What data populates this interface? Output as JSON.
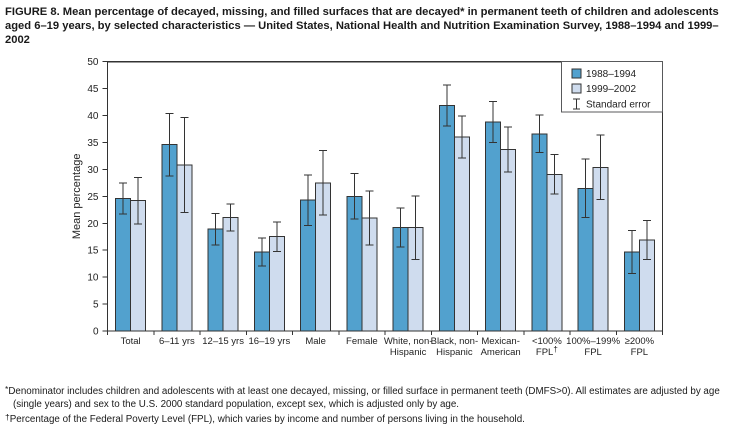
{
  "figure": {
    "title": "FIGURE 8. Mean percentage of decayed, missing, and filled surfaces that are decayed* in permanent teeth of children and adolescents aged 6–19 years, by selected characteristics — United States, National Health and Nutrition Examination Survey, 1988–1994 and 1999–2002"
  },
  "chart_data": {
    "type": "bar",
    "title": "",
    "xlabel": "",
    "ylabel": "Mean percentage",
    "ylim": [
      0,
      50
    ],
    "ytick_step": 5,
    "grid": false,
    "legend_position": "top-right-inside",
    "legend_error_label": "Standard error",
    "frame_color": "#333333",
    "categories": [
      [
        "Total"
      ],
      [
        "6–11 yrs"
      ],
      [
        "12–15 yrs"
      ],
      [
        "16–19 yrs"
      ],
      [
        "Male"
      ],
      [
        "Female"
      ],
      [
        "White, non-",
        "Hispanic"
      ],
      [
        "Black, non-",
        "Hispanic"
      ],
      [
        "Mexican-",
        "American"
      ],
      [
        "<100%",
        "FPL†"
      ],
      [
        "100%–199%",
        "FPL"
      ],
      [
        "≥200%",
        "FPL"
      ]
    ],
    "series": [
      {
        "name": "1988–1994",
        "color": "#52a1ce",
        "values": [
          24.6,
          34.6,
          18.9,
          14.7,
          24.3,
          25.0,
          19.2,
          41.9,
          38.8,
          36.6,
          26.5,
          14.7
        ],
        "errors": [
          2.9,
          5.8,
          2.9,
          2.6,
          4.7,
          4.2,
          3.6,
          3.8,
          3.8,
          3.5,
          5.4,
          4.0
        ]
      },
      {
        "name": "1999–2002",
        "color": "#cfdcee",
        "values": [
          24.2,
          30.8,
          21.1,
          17.5,
          27.5,
          21.0,
          19.2,
          36.0,
          33.7,
          29.1,
          30.4,
          16.9
        ],
        "errors": [
          4.3,
          8.8,
          2.5,
          2.7,
          6.0,
          5.0,
          5.9,
          3.9,
          4.2,
          3.7,
          6.0,
          3.6
        ]
      }
    ]
  },
  "footnotes": [
    {
      "marker": "*",
      "text": "Denominator includes children and adolescents with at least one decayed, missing, or filled surface in permanent teeth (DMFS>0). All estimates are adjusted by age (single years) and sex to the U.S. 2000 standard population, except sex, which is adjusted only by age."
    },
    {
      "marker": "†",
      "text": "Percentage of the Federal Poverty Level (FPL), which varies by income and number of persons living in the household."
    }
  ]
}
